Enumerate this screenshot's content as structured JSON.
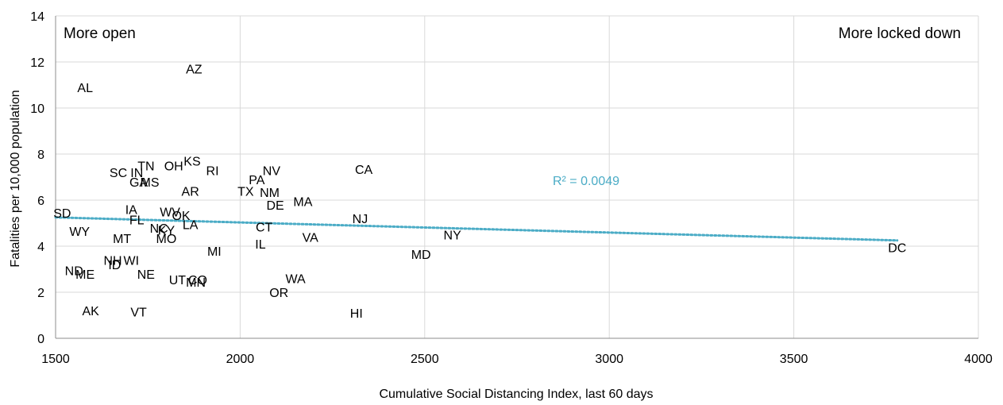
{
  "chart_data": {
    "type": "scatter",
    "xlabel": "Cumulative Social Distancing Index, last 60 days",
    "ylabel": "Fatalities per 10,000 population",
    "xlim": [
      1500,
      4000
    ],
    "ylim": [
      0,
      14
    ],
    "x_ticks": [
      1500,
      2000,
      2500,
      3000,
      3500,
      4000
    ],
    "y_ticks": [
      0,
      2,
      4,
      6,
      8,
      10,
      12,
      14
    ],
    "grid": true,
    "annotations": {
      "left_corner": "More open",
      "right_corner": "More locked down",
      "r_squared": "R² = 0.0049"
    },
    "trendline": {
      "x": [
        1500,
        3780
      ],
      "y": [
        5.25,
        4.25
      ],
      "color": "#4bacc6"
    },
    "points": [
      {
        "label": "AZ",
        "x": 1875,
        "y": 11.7
      },
      {
        "label": "AL",
        "x": 1580,
        "y": 10.9
      },
      {
        "label": "KS",
        "x": 1870,
        "y": 7.7
      },
      {
        "label": "TN",
        "x": 1745,
        "y": 7.5
      },
      {
        "label": "OH",
        "x": 1820,
        "y": 7.5
      },
      {
        "label": "RI",
        "x": 1925,
        "y": 7.3
      },
      {
        "label": "NV",
        "x": 2085,
        "y": 7.3
      },
      {
        "label": "CA",
        "x": 2335,
        "y": 7.35
      },
      {
        "label": "SC",
        "x": 1670,
        "y": 7.2
      },
      {
        "label": "IN",
        "x": 1720,
        "y": 7.2
      },
      {
        "label": "PA",
        "x": 2045,
        "y": 6.9
      },
      {
        "label": "GA",
        "x": 1725,
        "y": 6.8
      },
      {
        "label": "MS",
        "x": 1755,
        "y": 6.8
      },
      {
        "label": "AR",
        "x": 1865,
        "y": 6.4
      },
      {
        "label": "TX",
        "x": 2015,
        "y": 6.4
      },
      {
        "label": "NM",
        "x": 2080,
        "y": 6.35
      },
      {
        "label": "MA",
        "x": 2170,
        "y": 5.95
      },
      {
        "label": "DE",
        "x": 2095,
        "y": 5.8
      },
      {
        "label": "IA",
        "x": 1705,
        "y": 5.6
      },
      {
        "label": "WV",
        "x": 1810,
        "y": 5.5
      },
      {
        "label": "OK",
        "x": 1840,
        "y": 5.35
      },
      {
        "label": "SD",
        "x": 1518,
        "y": 5.45
      },
      {
        "label": "NJ",
        "x": 2325,
        "y": 5.2
      },
      {
        "label": "FL",
        "x": 1720,
        "y": 5.15
      },
      {
        "label": "LA",
        "x": 1865,
        "y": 4.95
      },
      {
        "label": "NC",
        "x": 1780,
        "y": 4.8
      },
      {
        "label": "KY",
        "x": 1800,
        "y": 4.7
      },
      {
        "label": "CT",
        "x": 2065,
        "y": 4.85
      },
      {
        "label": "WY",
        "x": 1565,
        "y": 4.65
      },
      {
        "label": "NY",
        "x": 2575,
        "y": 4.5
      },
      {
        "label": "MT",
        "x": 1680,
        "y": 4.35
      },
      {
        "label": "MO",
        "x": 1800,
        "y": 4.35
      },
      {
        "label": "VA",
        "x": 2190,
        "y": 4.4
      },
      {
        "label": "IL",
        "x": 2055,
        "y": 4.1
      },
      {
        "label": "DC",
        "x": 3780,
        "y": 3.95
      },
      {
        "label": "MI",
        "x": 1930,
        "y": 3.8
      },
      {
        "label": "MD",
        "x": 2490,
        "y": 3.65
      },
      {
        "label": "NH",
        "x": 1655,
        "y": 3.4
      },
      {
        "label": "WI",
        "x": 1705,
        "y": 3.4
      },
      {
        "label": "ID",
        "x": 1660,
        "y": 3.2
      },
      {
        "label": "ND",
        "x": 1550,
        "y": 2.95
      },
      {
        "label": "ME",
        "x": 1580,
        "y": 2.8
      },
      {
        "label": "NE",
        "x": 1745,
        "y": 2.8
      },
      {
        "label": "WA",
        "x": 2150,
        "y": 2.6
      },
      {
        "label": "UT",
        "x": 1830,
        "y": 2.55
      },
      {
        "label": "CO",
        "x": 1885,
        "y": 2.55
      },
      {
        "label": "MN",
        "x": 1880,
        "y": 2.45
      },
      {
        "label": "OR",
        "x": 2105,
        "y": 2.0
      },
      {
        "label": "AK",
        "x": 1595,
        "y": 1.2
      },
      {
        "label": "VT",
        "x": 1725,
        "y": 1.15
      },
      {
        "label": "HI",
        "x": 2315,
        "y": 1.1
      }
    ]
  }
}
